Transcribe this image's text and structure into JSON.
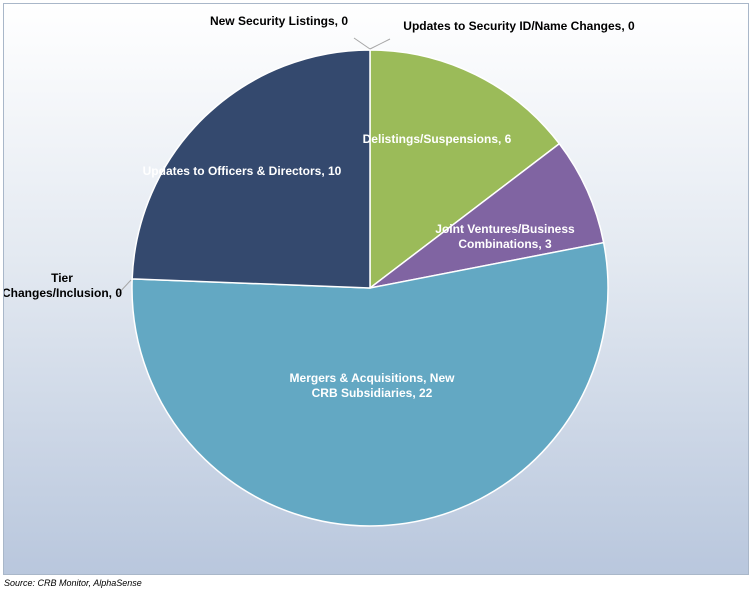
{
  "chart_data": {
    "type": "pie",
    "slices": [
      {
        "label": "New Security Listings",
        "value": 0,
        "color": "#4e7fc0"
      },
      {
        "label": "Updates to Security ID/Name Changes",
        "value": 0,
        "color": "#c0504d"
      },
      {
        "label": "Delistings/Suspensions",
        "value": 6,
        "color": "#9bbb59"
      },
      {
        "label": "Joint Ventures/Business Combinations",
        "value": 3,
        "color": "#8064a2"
      },
      {
        "label": "Mergers & Acquisitions, New CRB Subsidiaries",
        "value": 22,
        "color": "#63a8c3"
      },
      {
        "label": "Tier Changes/Inclusion",
        "value": 0,
        "color": "#f79646"
      },
      {
        "label": "Updates to Officers & Directors",
        "value": 10,
        "color": "#34496e"
      }
    ],
    "data_labels": [
      {
        "lines": [
          "New Security Listings, 0"
        ]
      },
      {
        "lines": [
          "Updates to Security ID/Name Changes, 0"
        ]
      },
      {
        "lines": [
          "Delistings/Suspensions, 6"
        ]
      },
      {
        "lines": [
          "Joint Ventures/Business",
          "Combinations, 3"
        ]
      },
      {
        "lines": [
          "Mergers & Acquisitions, New",
          "CRB Subsidiaries, 22"
        ]
      },
      {
        "lines": [
          "Tier",
          "Changes/Inclusion, 0"
        ]
      },
      {
        "lines": [
          "Updates to Officers & Directors, 10"
        ]
      }
    ],
    "start_angle": "12 o'clock",
    "direction": "clockwise"
  },
  "source": "Source: CRB Monitor, AlphaSense"
}
